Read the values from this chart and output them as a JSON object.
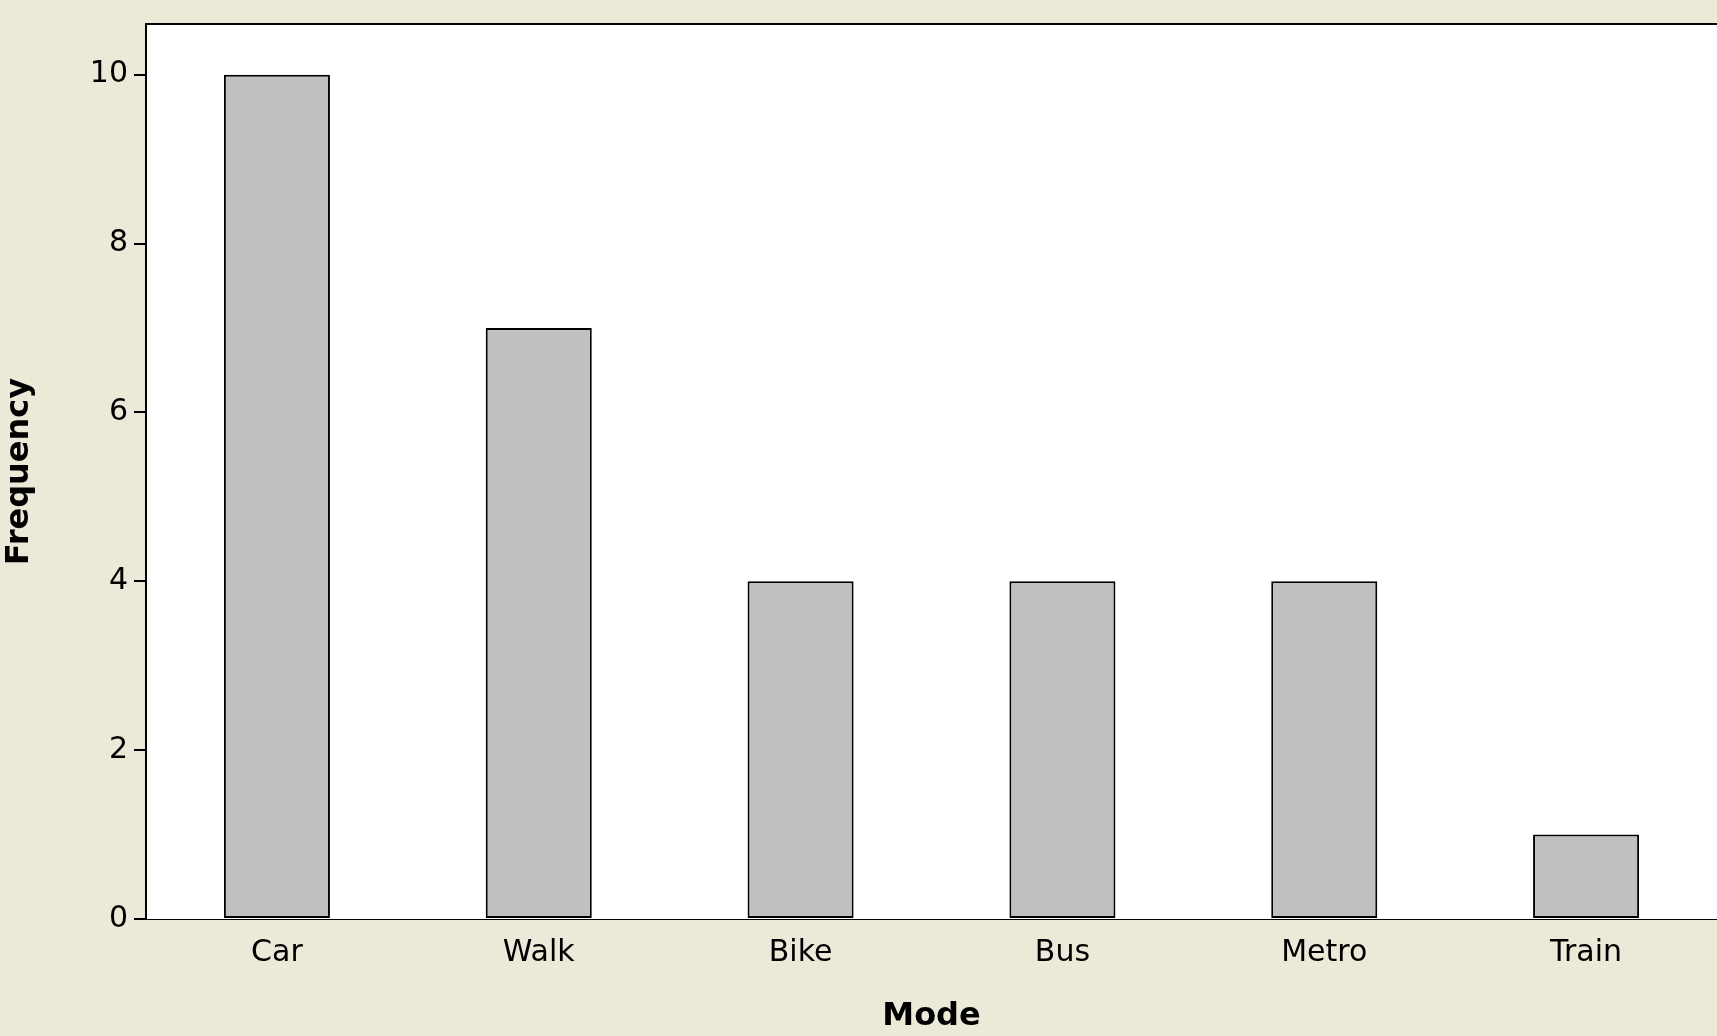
{
  "chart_data": {
    "type": "bar",
    "xlabel": "Mode",
    "ylabel": "Frequency",
    "categories": [
      "Car",
      "Walk",
      "Bike",
      "Bus",
      "Metro",
      "Train"
    ],
    "values": [
      10,
      7,
      4,
      4,
      4,
      1
    ],
    "color": "#c0c0c0",
    "ylim": [
      0,
      10.6
    ],
    "yticks": [
      0,
      2,
      4,
      6,
      8,
      10
    ],
    "grid": false,
    "legend": false
  }
}
